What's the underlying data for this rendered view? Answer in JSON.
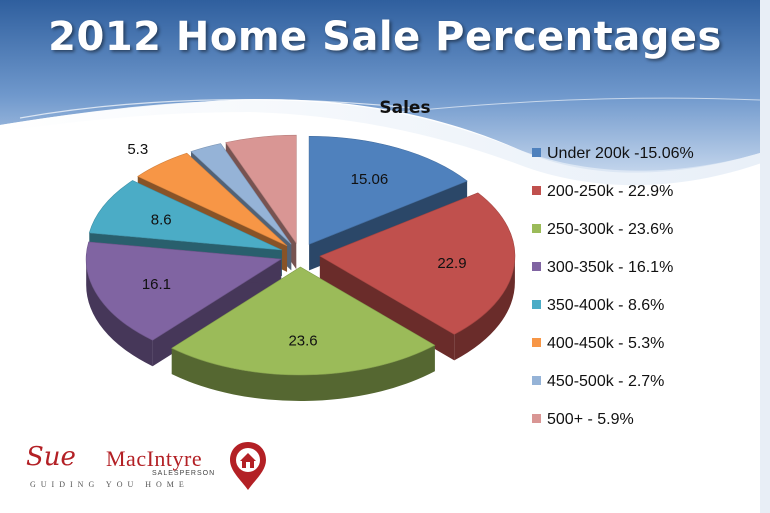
{
  "slide": {
    "title": "2012 Home Sale Percentages"
  },
  "chart_data": {
    "type": "pie",
    "title": "Sales",
    "series": [
      {
        "name": "Sales",
        "values": [
          15.06,
          22.9,
          23.6,
          16.1,
          8.6,
          5.3,
          2.7,
          5.9
        ]
      }
    ],
    "categories": [
      "Under 200k",
      "200-250k",
      "250-300k",
      "300-350k",
      "350-400k",
      "400-450k",
      "450-500k",
      "500+"
    ],
    "data_labels": [
      "15.06",
      "22.9",
      "23.6",
      "16.1",
      "8.6",
      "5.3",
      "",
      ""
    ],
    "legend": [
      "Under 200k -15.06%",
      "200-250k - 22.9%",
      "250-300k - 23.6%",
      "300-350k - 16.1%",
      "350-400k - 8.6%",
      "400-450k - 5.3%",
      "450-500k - 2.7%",
      "500+ - 5.9%"
    ],
    "colors": [
      "#4f81bd",
      "#c0504d",
      "#9bbb59",
      "#8064a2",
      "#4bacc6",
      "#f79646",
      "#95b3d7",
      "#d99694"
    ],
    "legend_position": "right",
    "style": "exploded 3-D pie"
  },
  "logo": {
    "script_text": "Sue",
    "name_text": "MacIntyre",
    "title_text": "SALESPERSON",
    "tagline": "GUIDING YOU HOME",
    "icon": "house-pin-icon",
    "color": "#b32025"
  },
  "theme": {
    "title_color": "#ffffff",
    "wave_color": "#4f7db8"
  }
}
